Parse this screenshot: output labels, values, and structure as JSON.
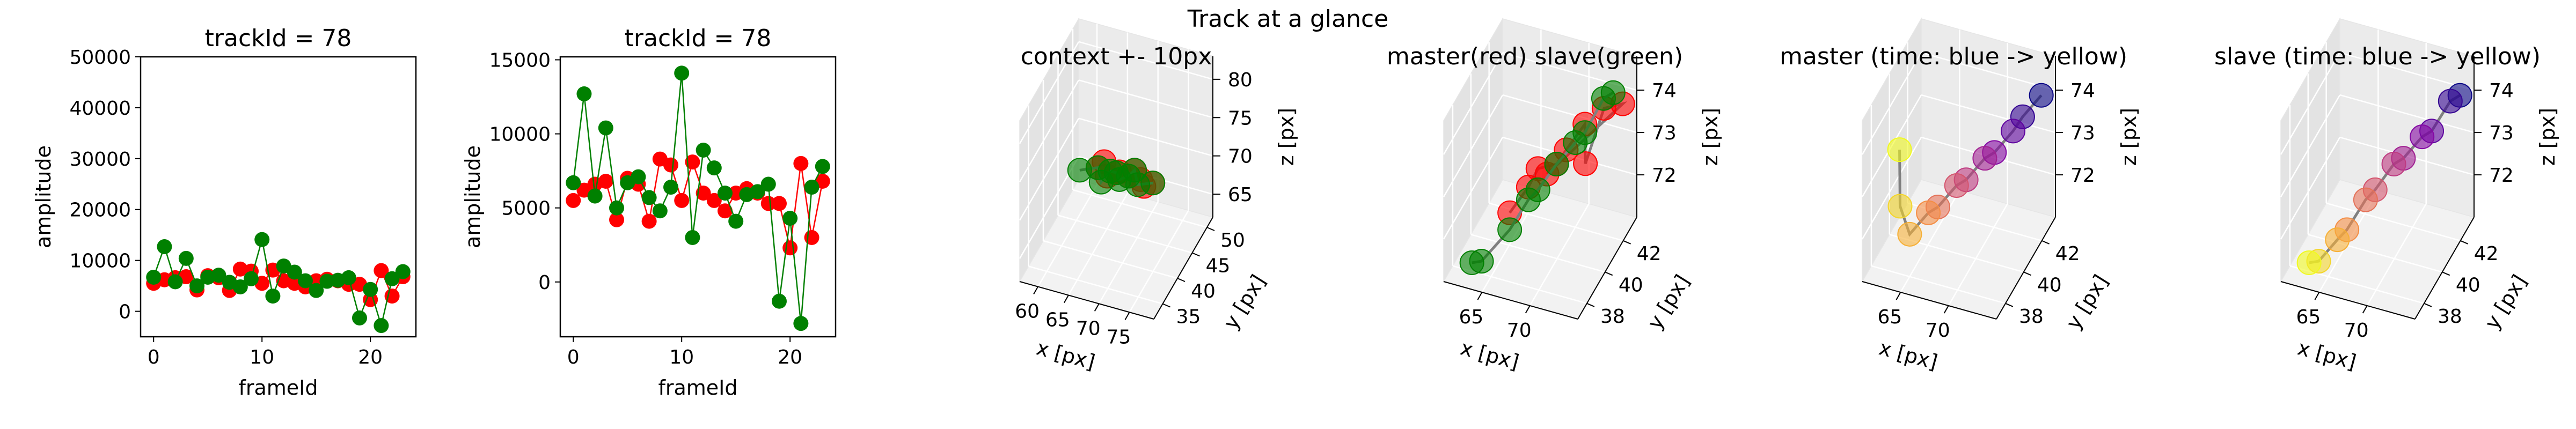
{
  "figure": {
    "suptitle": "Track at a glance"
  },
  "chart_data": [
    {
      "type": "scatter",
      "title": "trackId = 78",
      "xlabel": "frameId",
      "ylabel": "amplitude",
      "xlim": [
        -1.2,
        24.2
      ],
      "ylim": [
        -5000,
        50000
      ],
      "xticks": [
        0,
        10,
        20
      ],
      "yticks": [
        0,
        10000,
        20000,
        30000,
        40000,
        50000
      ],
      "series": [
        {
          "color": "#ff0000",
          "x": [
            0,
            1,
            2,
            3,
            4,
            5,
            6,
            7,
            8,
            9,
            10,
            11,
            12,
            13,
            14,
            15,
            16,
            17,
            18,
            19,
            20,
            21,
            22,
            23
          ],
          "values": [
            5500,
            6200,
            6600,
            6800,
            4200,
            7000,
            6600,
            4100,
            8300,
            7900,
            5500,
            8100,
            6000,
            5500,
            4800,
            6000,
            6300,
            6000,
            5300,
            5300,
            2300,
            8000,
            3000,
            6800
          ]
        },
        {
          "color": "#008000",
          "x": [
            0,
            1,
            2,
            3,
            4,
            5,
            6,
            7,
            8,
            9,
            10,
            11,
            12,
            13,
            14,
            15,
            16,
            17,
            18,
            19,
            20,
            21,
            22,
            23
          ],
          "values": [
            6700,
            12700,
            5800,
            10400,
            5000,
            6700,
            7100,
            5700,
            4800,
            6400,
            14100,
            3000,
            8900,
            7700,
            6000,
            4100,
            5900,
            6100,
            6600,
            -1300,
            4300,
            -2800,
            6400,
            7800
          ]
        }
      ]
    },
    {
      "type": "scatter",
      "title": "trackId = 78",
      "xlabel": "frameId",
      "ylabel": "amplitude",
      "xlim": [
        -1.2,
        24.2
      ],
      "ylim": [
        -3700,
        15200
      ],
      "xticks": [
        0,
        10,
        20
      ],
      "yticks": [
        0,
        5000,
        10000,
        15000
      ],
      "series": [
        {
          "color": "#ff0000",
          "x": [
            0,
            1,
            2,
            3,
            4,
            5,
            6,
            7,
            8,
            9,
            10,
            11,
            12,
            13,
            14,
            15,
            16,
            17,
            18,
            19,
            20,
            21,
            22,
            23
          ],
          "values": [
            5500,
            6200,
            6600,
            6800,
            4200,
            7000,
            6600,
            4100,
            8300,
            7900,
            5500,
            8100,
            6000,
            5500,
            4800,
            6000,
            6300,
            6000,
            5300,
            5300,
            2300,
            8000,
            3000,
            6800
          ]
        },
        {
          "color": "#008000",
          "x": [
            0,
            1,
            2,
            3,
            4,
            5,
            6,
            7,
            8,
            9,
            10,
            11,
            12,
            13,
            14,
            15,
            16,
            17,
            18,
            19,
            20,
            21,
            22,
            23
          ],
          "values": [
            6700,
            12700,
            5800,
            10400,
            5000,
            6700,
            7100,
            5700,
            4800,
            6400,
            14100,
            3000,
            8900,
            7700,
            6000,
            4100,
            5900,
            6100,
            6600,
            -1300,
            4300,
            -2800,
            6400,
            7800
          ]
        }
      ]
    },
    {
      "type": "scatter3d",
      "title": "context +- 10px",
      "xlabel": "x [px]",
      "ylabel": "y [px]",
      "zlabel": "z [px]",
      "xlim": [
        57,
        79
      ],
      "ylim": [
        32,
        52
      ],
      "zlim": [
        62,
        83
      ],
      "xticks": [
        60,
        65,
        70,
        75
      ],
      "yticks": [
        35,
        40,
        45,
        50
      ],
      "zticks": [
        65,
        70,
        75,
        80
      ],
      "series": [
        {
          "color": "#ff0000",
          "points": [
            [
              65,
              42,
              72
            ],
            [
              66,
              42,
              73
            ],
            [
              67,
              41,
              72
            ],
            [
              68,
              42,
              72
            ],
            [
              69,
              41,
              73
            ],
            [
              70,
              42,
              72
            ],
            [
              71,
              42,
              73
            ],
            [
              72,
              42,
              72
            ],
            [
              73,
              41,
              72
            ],
            [
              74,
              42,
              72
            ]
          ]
        },
        {
          "color": "#008000",
          "points": [
            [
              62,
              42,
              71
            ],
            [
              65,
              42,
              72
            ],
            [
              66,
              41,
              71
            ],
            [
              67,
              42,
              72
            ],
            [
              68,
              42,
              72
            ],
            [
              69,
              41,
              72
            ],
            [
              70,
              42,
              72
            ],
            [
              71,
              42,
              73
            ],
            [
              72,
              41,
              72
            ],
            [
              74,
              42,
              72
            ]
          ]
        }
      ]
    },
    {
      "type": "scatter3d",
      "title": "master(red) slave(green)",
      "xlabel": "x [px]",
      "ylabel": "y [px]",
      "zlabel": "z [px]",
      "xlim": [
        61,
        75
      ],
      "ylim": [
        37,
        43.5
      ],
      "zlim": [
        71,
        74.8
      ],
      "xticks": [
        65,
        70
      ],
      "yticks": [
        38,
        40,
        42
      ],
      "zticks": [
        72,
        73,
        74
      ],
      "series": [
        {
          "color": "#ff0000",
          "points": [
            [
              66,
              39,
              72.2
            ],
            [
              67,
              40,
              72.5
            ],
            [
              68,
              40,
              73
            ],
            [
              69,
              41,
              72.8
            ],
            [
              70,
              41,
              73.2
            ],
            [
              71,
              42,
              73.5
            ],
            [
              72,
              41,
              73
            ],
            [
              73,
              42,
              74
            ],
            [
              74,
              43,
              73.8
            ],
            [
              68,
              41,
              72.5
            ]
          ]
        },
        {
          "color": "#008000",
          "points": [
            [
              63,
              38,
              71.2
            ],
            [
              64,
              38,
              71.3
            ],
            [
              66,
              39,
              71.8
            ],
            [
              67,
              40,
              72.2
            ],
            [
              68,
              40,
              72.5
            ],
            [
              69,
              41,
              72.8
            ],
            [
              70,
              42,
              73
            ],
            [
              71,
              42,
              73.3
            ],
            [
              72,
              43,
              73.8
            ],
            [
              73,
              43,
              74
            ]
          ]
        }
      ]
    },
    {
      "type": "scatter3d",
      "title": "master (time: blue -> yellow)",
      "xlabel": "x [px]",
      "ylabel": "y [px]",
      "zlabel": "z [px]",
      "xlim": [
        61,
        75
      ],
      "ylim": [
        37,
        43.5
      ],
      "zlim": [
        71,
        74.8
      ],
      "xticks": [
        65,
        70
      ],
      "yticks": [
        38,
        40,
        42
      ],
      "zticks": [
        72,
        73,
        74
      ],
      "colormap": "plasma",
      "series": [
        {
          "points": [
            [
              74,
              43,
              74
            ],
            [
              73,
              42,
              73.8
            ],
            [
              72,
              42,
              73.4
            ],
            [
              71,
              41,
              73.2
            ],
            [
              70,
              41,
              73
            ],
            [
              69,
              40,
              72.8
            ],
            [
              68,
              40,
              72.6
            ],
            [
              67,
              39,
              72.4
            ],
            [
              66,
              39,
              72.2
            ],
            [
              65,
              38,
              72
            ],
            [
              64,
              38,
              72.6
            ],
            [
              63,
              39,
              73.5
            ]
          ]
        }
      ]
    },
    {
      "type": "scatter3d",
      "title": "slave (time: blue -> yellow)",
      "xlabel": "x [px]",
      "ylabel": "y [px]",
      "zlabel": "z [px]",
      "xlim": [
        61,
        75
      ],
      "ylim": [
        37,
        43.5
      ],
      "zlim": [
        71,
        74.8
      ],
      "xticks": [
        65,
        70
      ],
      "yticks": [
        38,
        40,
        42
      ],
      "zticks": [
        72,
        73,
        74
      ],
      "colormap": "plasma",
      "series": [
        {
          "points": [
            [
              74,
              43,
              74
            ],
            [
              73,
              43,
              73.8
            ],
            [
              72,
              42,
              73.4
            ],
            [
              71,
              42,
              73.2
            ],
            [
              70,
              41,
              73
            ],
            [
              69,
              41,
              72.8
            ],
            [
              68,
              40,
              72.5
            ],
            [
              67,
              40,
              72.2
            ],
            [
              66,
              39,
              71.8
            ],
            [
              65,
              39,
              71.5
            ],
            [
              64,
              38,
              71.3
            ],
            [
              63,
              38,
              71.2
            ]
          ]
        }
      ]
    }
  ]
}
